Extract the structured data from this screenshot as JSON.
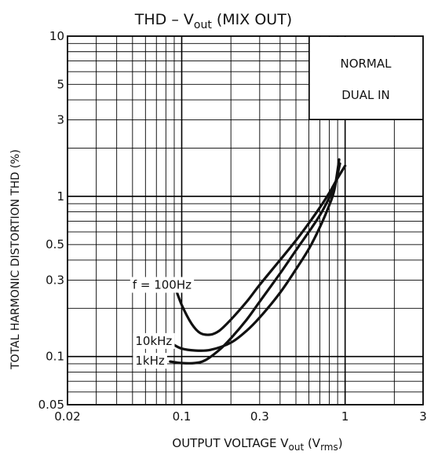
{
  "chart_data": {
    "type": "line",
    "title": {
      "main": "THD  –  V",
      "sub": "out",
      "rest": " (MIX OUT)"
    },
    "ylabel": "TOTAL HARMONIC DISTORTION   THD    (%)",
    "xlabel": {
      "main": "OUTPUT VOLTAGE   V",
      "sub": "out",
      "paren_open": "   (V",
      "paren_sub": "rms",
      "paren_close": ")"
    },
    "x_scale": "log",
    "y_scale": "log",
    "xlim": [
      0.02,
      3
    ],
    "ylim": [
      0.05,
      10
    ],
    "x_ticks": [
      {
        "value": 0.02,
        "label": "0.02"
      },
      {
        "value": 0.1,
        "label": "0.1"
      },
      {
        "value": 0.3,
        "label": "0.3"
      },
      {
        "value": 1,
        "label": "1"
      },
      {
        "value": 3,
        "label": "3"
      }
    ],
    "y_ticks": [
      {
        "value": 10,
        "label": "10"
      },
      {
        "value": 5,
        "label": "5"
      },
      {
        "value": 3,
        "label": "3"
      },
      {
        "value": 1,
        "label": "1"
      },
      {
        "value": 0.5,
        "label": "0.5"
      },
      {
        "value": 0.3,
        "label": "0.3"
      },
      {
        "value": 0.1,
        "label": "0.1"
      },
      {
        "value": 0.05,
        "label": "0.05"
      }
    ],
    "grid": true,
    "condition_box": {
      "lines": [
        "NORMAL",
        "DUAL IN"
      ],
      "placement": "top-right"
    },
    "series": [
      {
        "name": "f = 100Hz",
        "points": [
          [
            0.09,
            0.28
          ],
          [
            0.1,
            0.21
          ],
          [
            0.115,
            0.16
          ],
          [
            0.13,
            0.14
          ],
          [
            0.15,
            0.137
          ],
          [
            0.17,
            0.145
          ],
          [
            0.2,
            0.17
          ],
          [
            0.25,
            0.22
          ],
          [
            0.3,
            0.28
          ],
          [
            0.4,
            0.4
          ],
          [
            0.5,
            0.53
          ],
          [
            0.6,
            0.68
          ],
          [
            0.7,
            0.85
          ],
          [
            0.8,
            1.05
          ],
          [
            0.9,
            1.3
          ],
          [
            1.0,
            1.55
          ]
        ]
      },
      {
        "name": "10kHz",
        "points": [
          [
            0.08,
            0.128
          ],
          [
            0.09,
            0.118
          ],
          [
            0.1,
            0.112
          ],
          [
            0.12,
            0.109
          ],
          [
            0.15,
            0.11
          ],
          [
            0.2,
            0.122
          ],
          [
            0.25,
            0.145
          ],
          [
            0.3,
            0.175
          ],
          [
            0.4,
            0.25
          ],
          [
            0.5,
            0.35
          ],
          [
            0.6,
            0.47
          ],
          [
            0.7,
            0.64
          ],
          [
            0.8,
            0.88
          ],
          [
            0.86,
            1.1
          ],
          [
            0.92,
            1.7
          ]
        ]
      },
      {
        "name": "1kHz",
        "points": [
          [
            0.085,
            0.093
          ],
          [
            0.1,
            0.091
          ],
          [
            0.12,
            0.091
          ],
          [
            0.14,
            0.095
          ],
          [
            0.17,
            0.11
          ],
          [
            0.2,
            0.13
          ],
          [
            0.25,
            0.17
          ],
          [
            0.3,
            0.22
          ],
          [
            0.4,
            0.33
          ],
          [
            0.5,
            0.46
          ],
          [
            0.6,
            0.6
          ],
          [
            0.7,
            0.76
          ],
          [
            0.8,
            0.98
          ],
          [
            0.87,
            1.2
          ],
          [
            0.93,
            1.6
          ]
        ]
      }
    ],
    "annotations": [
      {
        "text": "f = 100Hz",
        "x": 0.05,
        "y": 0.28
      },
      {
        "text": "10kHz",
        "x": 0.052,
        "y": 0.125
      },
      {
        "text": "1kHz",
        "x": 0.052,
        "y": 0.094
      }
    ]
  }
}
